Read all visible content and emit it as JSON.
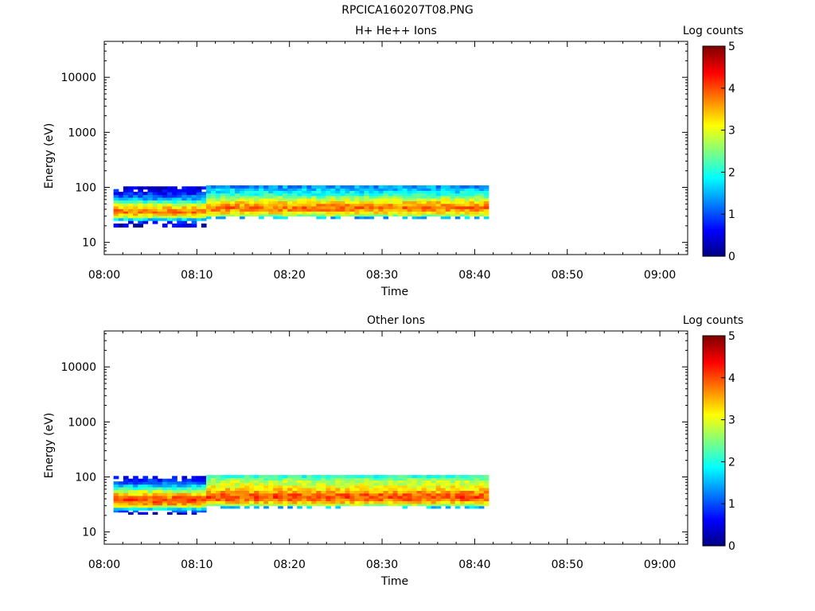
{
  "figure_title": "RPCICA160207T08.PNG",
  "chart_data": [
    {
      "type": "heatmap",
      "title": "H+ He++ Ions",
      "xlabel": "Time",
      "ylabel": "Energy (eV)",
      "xticks": [
        "08:00",
        "08:10",
        "08:20",
        "08:30",
        "08:40",
        "08:50",
        "09:00"
      ],
      "xlim": [
        "08:00",
        "09:03"
      ],
      "yscale": "log",
      "ylim": [
        6,
        45000
      ],
      "yticks": [
        "10",
        "100",
        "1000",
        "10000"
      ],
      "colorbar_label": "Log counts",
      "colorbar_ticks": [
        "0",
        "1",
        "2",
        "3",
        "4",
        "5"
      ],
      "colorbar_range": [
        0,
        5
      ],
      "colormap": "jet",
      "data_time_range": [
        "08:01",
        "08:41:30"
      ],
      "cells": {
        "early": {
          "time_range": [
            "08:01",
            "08:11"
          ],
          "profile": [
            [
              19,
              0.4
            ],
            [
              22,
              0.8
            ],
            [
              25,
              1.7
            ],
            [
              28,
              2.8
            ],
            [
              31,
              3.4
            ],
            [
              34,
              3.8
            ],
            [
              37,
              3.7
            ],
            [
              41,
              3.3
            ],
            [
              46,
              2.9
            ],
            [
              52,
              2.1
            ],
            [
              59,
              1.5
            ],
            [
              66,
              1.1
            ],
            [
              74,
              0.8
            ],
            [
              83,
              0.6
            ],
            [
              93,
              0.4
            ]
          ]
        },
        "late": {
          "time_range": [
            "08:11",
            "08:41:30"
          ],
          "profile": [
            [
              27,
              1.5
            ],
            [
              30,
              2.6
            ],
            [
              33,
              3.2
            ],
            [
              37,
              3.6
            ],
            [
              41,
              3.8
            ],
            [
              46,
              3.6
            ],
            [
              51,
              3.3
            ],
            [
              57,
              2.9
            ],
            [
              64,
              2.5
            ],
            [
              71,
              2.1
            ],
            [
              79,
              1.8
            ],
            [
              88,
              1.6
            ],
            [
              97,
              1.4
            ]
          ]
        }
      }
    },
    {
      "type": "heatmap",
      "title": "Other Ions",
      "xlabel": "Time",
      "ylabel": "Energy (eV)",
      "xticks": [
        "08:00",
        "08:10",
        "08:20",
        "08:30",
        "08:40",
        "08:50",
        "09:00"
      ],
      "xlim": [
        "08:00",
        "09:03"
      ],
      "yscale": "log",
      "ylim": [
        6,
        45000
      ],
      "yticks": [
        "10",
        "100",
        "1000",
        "10000"
      ],
      "colorbar_label": "Log counts",
      "colorbar_ticks": [
        "0",
        "1",
        "2",
        "3",
        "4",
        "5"
      ],
      "colorbar_range": [
        0,
        5
      ],
      "colormap": "jet",
      "data_time_range": [
        "08:01",
        "08:41:30"
      ],
      "cells": {
        "early": {
          "time_range": [
            "08:01",
            "08:11"
          ],
          "profile": [
            [
              21,
              0.4
            ],
            [
              23,
              0.9
            ],
            [
              25,
              1.8
            ],
            [
              28,
              2.9
            ],
            [
              31,
              3.6
            ],
            [
              34,
              3.9
            ],
            [
              37,
              4.0
            ],
            [
              41,
              3.8
            ],
            [
              46,
              3.4
            ],
            [
              52,
              2.8
            ],
            [
              59,
              2.2
            ],
            [
              66,
              1.6
            ],
            [
              74,
              1.1
            ],
            [
              83,
              0.8
            ],
            [
              93,
              0.5
            ]
          ]
        },
        "late": {
          "time_range": [
            "08:11",
            "08:41:30"
          ],
          "profile": [
            [
              27,
              1.6
            ],
            [
              30,
              2.7
            ],
            [
              33,
              3.4
            ],
            [
              37,
              3.8
            ],
            [
              41,
              4.0
            ],
            [
              46,
              3.9
            ],
            [
              51,
              3.6
            ],
            [
              57,
              3.3
            ],
            [
              64,
              3.1
            ],
            [
              71,
              2.9
            ],
            [
              79,
              2.8
            ],
            [
              88,
              2.5
            ],
            [
              97,
              2.1
            ]
          ]
        }
      }
    }
  ]
}
